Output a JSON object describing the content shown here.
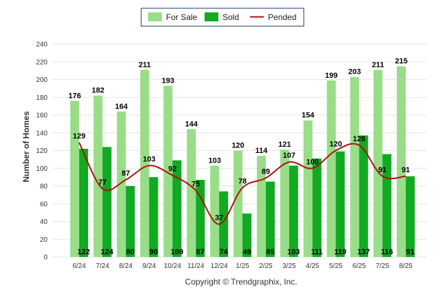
{
  "chart_data": {
    "type": "bar",
    "categories": [
      "6/24",
      "7/24",
      "8/24",
      "9/24",
      "10/24",
      "11/24",
      "12/24",
      "1/25",
      "2/25",
      "3/25",
      "4/25",
      "5/25",
      "6/25",
      "7/25",
      "8/25"
    ],
    "series": [
      {
        "name": "For Sale",
        "type": "bar",
        "color": "#99dd88",
        "values": [
          176,
          182,
          164,
          211,
          193,
          144,
          103,
          120,
          114,
          121,
          154,
          199,
          203,
          211,
          215
        ]
      },
      {
        "name": "Sold",
        "type": "bar",
        "color": "#11aa22",
        "values": [
          122,
          124,
          80,
          90,
          109,
          87,
          74,
          49,
          85,
          103,
          111,
          119,
          137,
          116,
          91
        ]
      },
      {
        "name": "Pended",
        "type": "line",
        "color": "#aa1111",
        "values": [
          129,
          77,
          87,
          103,
          92,
          75,
          37,
          78,
          89,
          107,
          100,
          120,
          126,
          91,
          91
        ]
      }
    ],
    "ylabel": "Number of Homes",
    "xlabel": "",
    "ylim": [
      0,
      240
    ],
    "yticks": [
      0,
      20,
      40,
      60,
      80,
      100,
      120,
      140,
      160,
      180,
      200,
      220,
      240
    ],
    "grid": true,
    "legend_position": "top-center",
    "footer": "Copyright © Trendgraphix, Inc."
  }
}
